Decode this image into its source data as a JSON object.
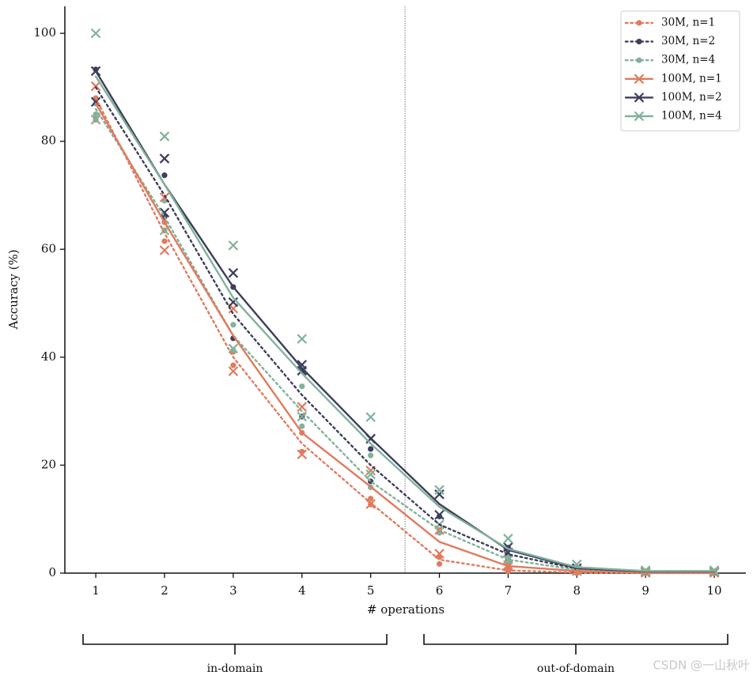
{
  "chart_data": {
    "type": "line",
    "xlabel": "# operations",
    "ylabel": "Accuracy (%)",
    "x": [
      1,
      2,
      3,
      4,
      5,
      6,
      7,
      8,
      9,
      10
    ],
    "xlim": [
      0.55,
      10.46
    ],
    "ylim": [
      0,
      105
    ],
    "xticks": [
      1,
      2,
      3,
      4,
      5,
      6,
      7,
      8,
      9,
      10
    ],
    "yticks": [
      0,
      20,
      40,
      60,
      80,
      100
    ],
    "divider_x": 5.5,
    "annotations": [
      "in-domain",
      "out-of-domain"
    ],
    "watermark": "CSDN @一山秋叶",
    "legend": "upper right",
    "series": [
      {
        "name": "30M, n=1",
        "color": "#e07b5f",
        "style": "dotted",
        "marker": "circle",
        "values": [
          88,
          63,
          40,
          24,
          13,
          2.5,
          0.5,
          0.1,
          0,
          0
        ],
        "runs": [
          [
            88,
            61.5,
            38.5,
            26,
            13.8,
            1.7,
            0.3,
            0,
            0,
            0
          ],
          [
            84,
            65,
            41,
            22.5,
            12.7,
            3,
            0.7,
            0,
            0,
            0
          ]
        ]
      },
      {
        "name": "30M, n=2",
        "color": "#3d3d5c",
        "style": "dotted",
        "marker": "circle",
        "values": [
          90,
          70,
          48,
          33,
          20,
          9,
          3.5,
          0.8,
          0.2,
          0.2
        ],
        "runs": [
          [
            93.3,
            73.7,
            53,
            37.5,
            23,
            10.5,
            4.7,
            1,
            0.3,
            0.3
          ],
          [
            87,
            66,
            43.5,
            29,
            17,
            7.5,
            2.5,
            0.6,
            0.2,
            0.2
          ]
        ]
      },
      {
        "name": "30M, n=4",
        "color": "#81b29a",
        "style": "dotted",
        "marker": "circle",
        "values": [
          86,
          66,
          44,
          30,
          17,
          8,
          2.5,
          0.6,
          0.2,
          0.2
        ],
        "runs": [
          [
            85,
            69,
            41.3,
            34.6,
            21.8,
            8,
            2,
            0.5,
            0.2,
            0.2
          ],
          [
            87,
            63.5,
            46,
            27.2,
            15.9,
            7.5,
            3,
            0.7,
            0.2,
            0.2
          ]
        ]
      },
      {
        "name": "100M, n=1",
        "color": "#e07b5f",
        "style": "solid",
        "marker": "x",
        "values": [
          87,
          65,
          44,
          26,
          16,
          5.8,
          1.3,
          0.4,
          0.1,
          0.1
        ],
        "runs": [
          [
            90.2,
            69.6,
            49,
            30.8,
            19,
            3.6,
            1.2,
            0.4,
            0.1,
            0.1
          ],
          [
            84,
            59.8,
            37.4,
            22,
            12.8,
            8,
            1.5,
            0.4,
            0.1,
            0.1
          ]
        ]
      },
      {
        "name": "100M, n=2",
        "color": "#3d3d5c",
        "style": "solid",
        "marker": "x",
        "values": [
          93,
          72,
          53,
          38,
          25,
          12.8,
          4.3,
          0.9,
          0.3,
          0.3
        ],
        "runs": [
          [
            87.3,
            76.8,
            55.6,
            38.6,
            24.9,
            14.6,
            3.8,
            0.9,
            0.3,
            0.3
          ],
          [
            93,
            66.8,
            50.2,
            37.5,
            24.9,
            10.8,
            4.8,
            0.9,
            0.3,
            0.3
          ]
        ]
      },
      {
        "name": "100M, n=4",
        "color": "#81b29a",
        "style": "solid",
        "marker": "x",
        "values": [
          92,
          72,
          51,
          37,
          24,
          12.3,
          4.5,
          1.1,
          0.4,
          0.4
        ],
        "runs": [
          [
            100,
            80.9,
            60.7,
            43.4,
            28.9,
            15.4,
            6.4,
            1.6,
            0.5,
            0.5
          ],
          [
            84,
            63.5,
            41.6,
            29,
            18.3,
            9,
            2.5,
            0.6,
            0.3,
            0.3
          ]
        ]
      }
    ]
  }
}
